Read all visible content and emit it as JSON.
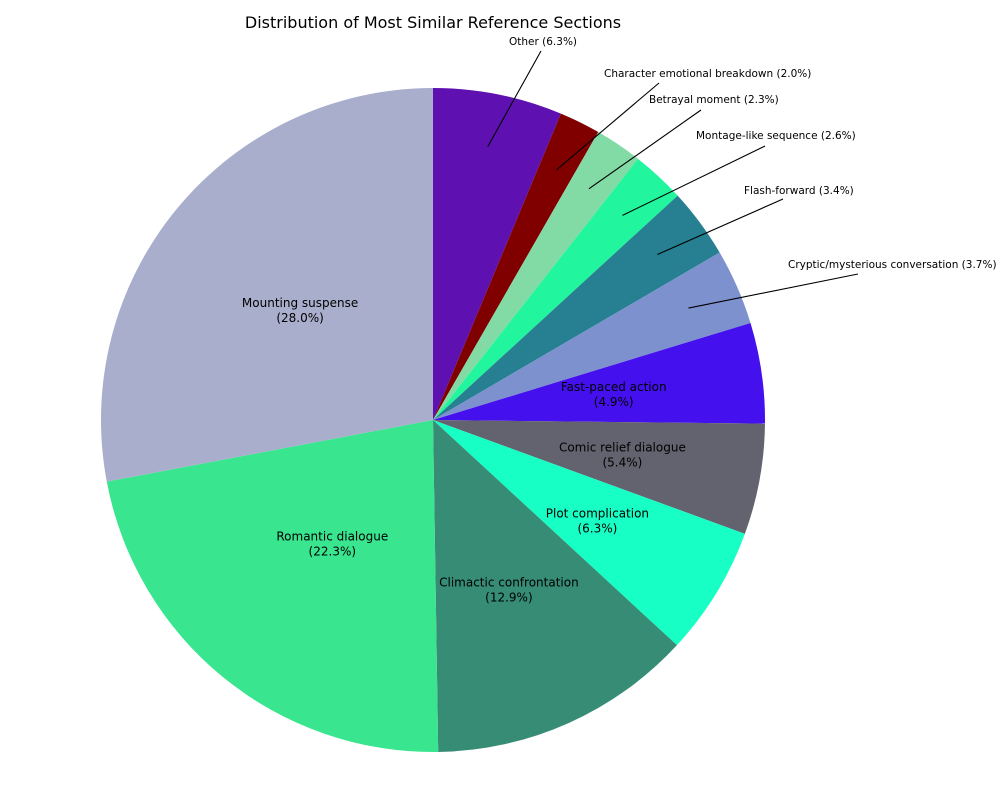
{
  "chart_data": {
    "type": "pie",
    "title": "Distribution of Most Similar Reference Sections",
    "start_angle_deg": 90,
    "direction": "clockwise",
    "slices": [
      {
        "label": "Other",
        "value": 6.3,
        "display": "Other (6.3%)",
        "color": "#5e11b0",
        "placement": "outside"
      },
      {
        "label": "Character emotional breakdown",
        "value": 2.0,
        "display": "Character emotional breakdown (2.0%)",
        "color": "#800000",
        "placement": "outside"
      },
      {
        "label": "Betrayal moment",
        "value": 2.3,
        "display": "Betrayal moment (2.3%)",
        "color": "#82daa4",
        "placement": "outside"
      },
      {
        "label": "Montage-like sequence",
        "value": 2.6,
        "display": "Montage-like sequence (2.6%)",
        "color": "#21f59e",
        "placement": "outside"
      },
      {
        "label": "Flash-forward",
        "value": 3.4,
        "display": "Flash-forward (3.4%)",
        "color": "#268091",
        "placement": "outside"
      },
      {
        "label": "Cryptic/mysterious conversation",
        "value": 3.7,
        "display": "Cryptic/mysterious conversation (3.7%)",
        "color": "#7d91cf",
        "placement": "outside"
      },
      {
        "label": "Fast-paced action",
        "value": 4.9,
        "line1": "Fast-paced action",
        "line2": "(4.9%)",
        "color": "#4510ee",
        "placement": "inside"
      },
      {
        "label": "Comic relief dialogue",
        "value": 5.4,
        "line1": "Comic relief dialogue",
        "line2": "(5.4%)",
        "color": "#63636f",
        "placement": "inside"
      },
      {
        "label": "Plot complication",
        "value": 6.3,
        "line1": "Plot complication",
        "line2": "(6.3%)",
        "color": "#17ffc4",
        "placement": "inside"
      },
      {
        "label": "Climactic confrontation",
        "value": 12.9,
        "line1": "Climactic confrontation",
        "line2": "(12.9%)",
        "color": "#368c74",
        "placement": "inside"
      },
      {
        "label": "Romantic dialogue",
        "value": 22.3,
        "line1": "Romantic dialogue",
        "line2": "(22.3%)",
        "color": "#39e58f",
        "placement": "inside"
      },
      {
        "label": "Mounting suspense",
        "value": 28.0,
        "line1": "Mounting suspense",
        "line2": "(28.0%)",
        "color": "#a9aecc",
        "placement": "inside"
      }
    ]
  }
}
